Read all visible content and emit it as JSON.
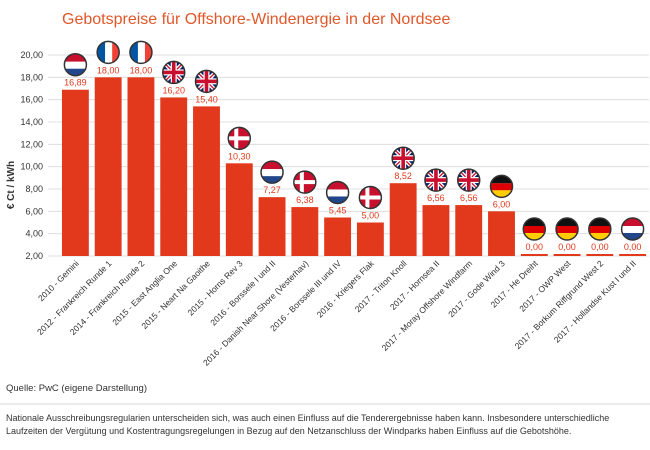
{
  "chart_data": {
    "type": "bar",
    "title": "Gebotspreise für Offshore-Windenergie in der Nordsee",
    "y_label": "€ Ct / kWh",
    "categories": [
      "2010 - Gemini",
      "2012 - Frankreich Runde 1",
      "2014 - Frankreich Runde 2",
      "2015 - East Anglia One",
      "2015 - Neart Na Gaoithe",
      "2015 - Horns Rev 3",
      "2016 - Borssele I und II",
      "2016 - Danish Near Shore (Vesterhav)",
      "2016 - Borssele III und IV",
      "2016 - Kriegers Flak",
      "2017 - Triton Knoll",
      "2017 - Hornsea II",
      "2017 - Moray Offshore Windfarm",
      "2017 - Gode Wind 3",
      "2017 - He Dreiht",
      "2017 - OWP West",
      "2017 - Borkum Riffgrund West 2",
      "2017 - Hollandse Kust I und II"
    ],
    "values": [
      16.89,
      18.0,
      18.0,
      16.2,
      15.4,
      10.3,
      7.27,
      6.38,
      5.45,
      5.0,
      8.52,
      6.56,
      6.56,
      6.0,
      0,
      0,
      0,
      0
    ],
    "value_labels": [
      "16,89",
      "18,00",
      "18,00",
      "16,20",
      "15,40",
      "10,30",
      "7,27",
      "6,38",
      "5,45",
      "5,00",
      "8,52",
      "6,56",
      "6,56",
      "6,00",
      "0,00",
      "0,00",
      "0,00",
      "0,00"
    ],
    "color": "#e2391d",
    "ylim": [
      2,
      20
    ],
    "yticks": [
      {
        "value": 2,
        "label": "2,00"
      },
      {
        "value": 4,
        "label": "4,00"
      },
      {
        "value": 6,
        "label": "6,00"
      },
      {
        "value": 8,
        "label": "8,00"
      },
      {
        "value": 10,
        "label": "10,00"
      },
      {
        "value": 12,
        "label": "12,00"
      },
      {
        "value": 14,
        "label": "14,00"
      },
      {
        "value": 16,
        "label": "16,00"
      },
      {
        "value": 18,
        "label": "18,00"
      },
      {
        "value": 20,
        "label": "20,00"
      }
    ],
    "grid": true,
    "source": "Quelle: PwC (eigene Darstellung)",
    "note": [
      "Nationale Ausschreibungsregularien unterscheiden sich, was auch einen Einfluss auf die Tenderergebnisse haben kann. Insbesondere unterschiedliche",
      "Laufzeiten der Vergütung und Kostentragungsregelungen in Bezug auf den Netzanschluss der Windparks haben Einfluss auf die Gebotshöhe."
    ]
  }
}
